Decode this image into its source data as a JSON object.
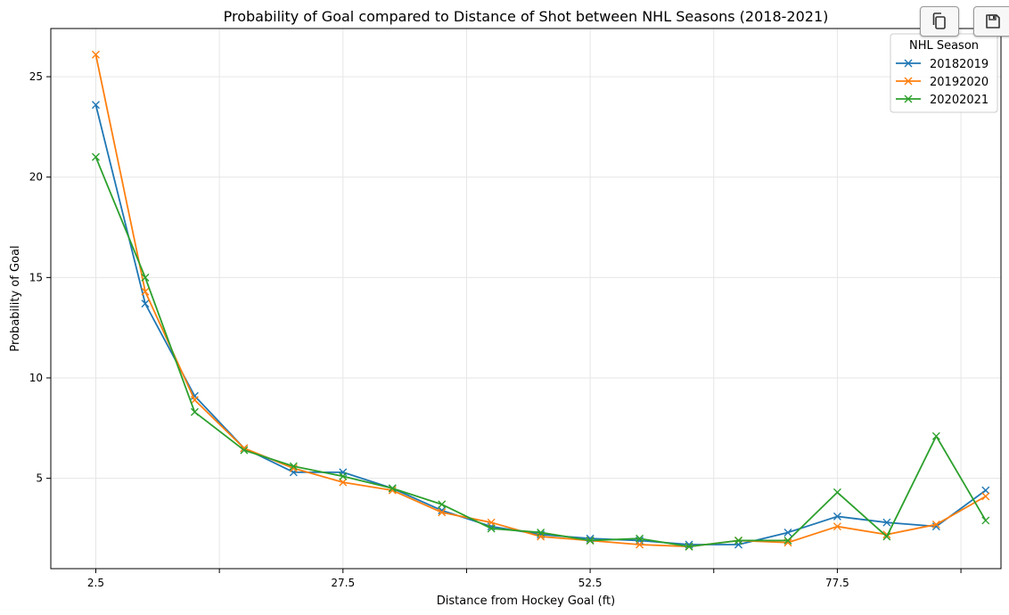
{
  "toolbar": {
    "copy_icon": "copy-icon",
    "save_icon": "floppy-disk-icon"
  },
  "chart_data": {
    "type": "line",
    "title": "Probability of Goal compared to Distance of Shot between NHL Seasons (2018-2021)",
    "xlabel": "Distance from Hockey Goal (ft)",
    "ylabel": "Probability of Goal",
    "xlim": [
      -2.05,
      94.05
    ],
    "ylim": [
      0.5,
      27.4
    ],
    "xticks": [
      2.5,
      15,
      27.5,
      40,
      52.5,
      65,
      77.5,
      90
    ],
    "xtick_labels": [
      "2.5",
      "",
      "27.5",
      "",
      "52.5",
      "",
      "77.5",
      ""
    ],
    "yticks": [
      5,
      10,
      15,
      20,
      25
    ],
    "ytick_labels": [
      "5",
      "10",
      "15",
      "20",
      "25"
    ],
    "grid": true,
    "marker": "x",
    "legend": {
      "title": "NHL Season",
      "position": "top-right"
    },
    "x": [
      2.5,
      7.5,
      12.5,
      17.5,
      22.5,
      27.5,
      32.5,
      37.5,
      42.5,
      47.5,
      52.5,
      57.5,
      62.5,
      67.5,
      72.5,
      77.5,
      82.5,
      87.5,
      92.5
    ],
    "series": [
      {
        "name": "20182019",
        "color": "#1f77b4",
        "values": [
          23.6,
          13.7,
          9.1,
          6.5,
          5.3,
          5.3,
          4.5,
          3.4,
          2.6,
          2.2,
          2.0,
          1.9,
          1.7,
          1.7,
          2.3,
          3.1,
          2.8,
          2.6,
          4.4
        ]
      },
      {
        "name": "20192020",
        "color": "#ff7f0e",
        "values": [
          26.1,
          14.3,
          8.9,
          6.5,
          5.5,
          4.8,
          4.4,
          3.3,
          2.8,
          2.1,
          1.9,
          1.7,
          1.6,
          1.9,
          1.8,
          2.6,
          2.2,
          2.7,
          4.1
        ]
      },
      {
        "name": "20202021",
        "color": "#2ca02c",
        "values": [
          21.0,
          15.0,
          8.3,
          6.4,
          5.6,
          5.1,
          4.5,
          3.7,
          2.5,
          2.3,
          1.9,
          2.0,
          1.6,
          1.9,
          1.9,
          4.3,
          2.1,
          7.1,
          2.9
        ]
      }
    ]
  }
}
